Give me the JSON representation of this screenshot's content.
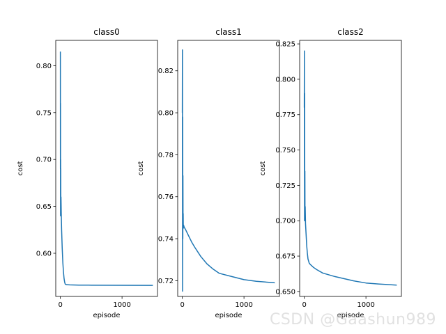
{
  "watermark": "CSDN @Gaashun989",
  "chart_data": [
    {
      "type": "line",
      "title": "class0",
      "xlabel": "episode",
      "ylabel": "cost",
      "xlim": [
        -75,
        1575
      ],
      "ylim": [
        0.554,
        0.827
      ],
      "xticks": [
        0,
        1000
      ],
      "yticks": [
        0.6,
        0.65,
        0.7,
        0.75,
        0.8
      ],
      "ytick_labels": [
        "0.60",
        "0.65",
        "0.70",
        "0.75",
        "0.80"
      ],
      "grid": false,
      "color": "#1f77b4",
      "x": [
        0,
        1,
        2,
        3,
        4,
        5,
        6,
        8,
        10,
        15,
        20,
        30,
        40,
        50,
        60,
        70,
        80,
        100,
        150,
        200,
        300,
        500,
        1000,
        1500
      ],
      "y": [
        0.815,
        0.69,
        0.76,
        0.64,
        0.7,
        0.66,
        0.69,
        0.64,
        0.66,
        0.64,
        0.625,
        0.605,
        0.59,
        0.58,
        0.573,
        0.569,
        0.567,
        0.5665,
        0.5663,
        0.5662,
        0.5661,
        0.566,
        0.5659,
        0.5658
      ]
    },
    {
      "type": "line",
      "title": "class1",
      "xlabel": "episode",
      "ylabel": "cost",
      "xlim": [
        -75,
        1575
      ],
      "ylim": [
        0.7125,
        0.8345
      ],
      "xticks": [
        0,
        1000
      ],
      "yticks": [
        0.72,
        0.74,
        0.76,
        0.78,
        0.8,
        0.82
      ],
      "ytick_labels": [
        "0.72",
        "0.74",
        "0.76",
        "0.78",
        "0.80",
        "0.82"
      ],
      "grid": false,
      "color": "#1f77b4",
      "x": [
        0,
        2,
        4,
        6,
        8,
        10,
        12,
        14,
        16,
        20,
        30,
        50,
        100,
        150,
        200,
        300,
        400,
        500,
        600,
        800,
        1000,
        1200,
        1500
      ],
      "y": [
        0.8,
        0.83,
        0.715,
        0.798,
        0.74,
        0.77,
        0.745,
        0.752,
        0.745,
        0.7465,
        0.7455,
        0.7445,
        0.7415,
        0.7385,
        0.736,
        0.7315,
        0.728,
        0.7255,
        0.7235,
        0.722,
        0.7205,
        0.7197,
        0.719
      ]
    },
    {
      "type": "line",
      "title": "class2",
      "xlabel": "episode",
      "ylabel": "cost",
      "xlim": [
        -75,
        1575
      ],
      "ylim": [
        0.6465,
        0.8275
      ],
      "xticks": [
        0,
        1000
      ],
      "yticks": [
        0.65,
        0.675,
        0.7,
        0.725,
        0.75,
        0.775,
        0.8,
        0.825
      ],
      "ytick_labels": [
        "0.650",
        "0.675",
        "0.700",
        "0.725",
        "0.750",
        "0.775",
        "0.800",
        "0.825"
      ],
      "grid": false,
      "color": "#1f77b4",
      "x": [
        0,
        2,
        4,
        6,
        8,
        10,
        12,
        15,
        20,
        30,
        40,
        50,
        60,
        80,
        100,
        150,
        200,
        300,
        500,
        800,
        1000,
        1200,
        1500
      ],
      "y": [
        0.78,
        0.82,
        0.7,
        0.79,
        0.705,
        0.735,
        0.7,
        0.71,
        0.698,
        0.69,
        0.682,
        0.677,
        0.673,
        0.67,
        0.669,
        0.667,
        0.6655,
        0.663,
        0.6605,
        0.6575,
        0.656,
        0.6553,
        0.6545
      ]
    }
  ]
}
